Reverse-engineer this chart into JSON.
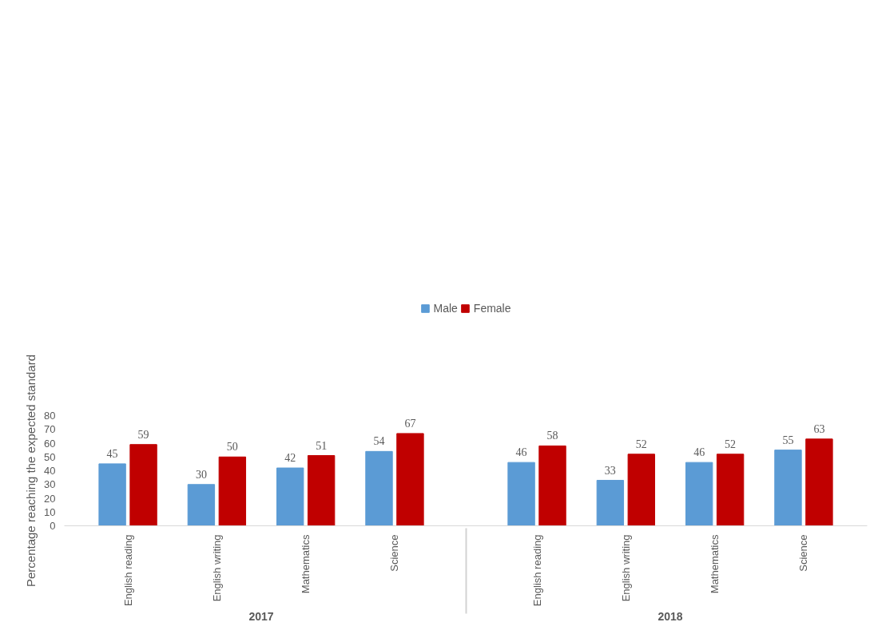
{
  "chart_data": {
    "type": "bar",
    "ylabel": "Percentage reaching the expected standard",
    "categories": [
      "English reading",
      "English writing",
      "Mathematics",
      "Science",
      "English reading",
      "English writing",
      "Mathematics",
      "Science"
    ],
    "annotations": [
      "2017",
      "2018"
    ],
    "series": [
      {
        "name": "Male",
        "color": "#5b9bd5",
        "values": [
          45,
          30,
          42,
          54,
          46,
          33,
          46,
          55
        ]
      },
      {
        "name": "Female",
        "color": "#c00000",
        "values": [
          59,
          50,
          51,
          67,
          58,
          52,
          52,
          63
        ]
      }
    ],
    "ylim": [
      0,
      80
    ],
    "yticks": [
      0,
      10,
      20,
      30,
      40,
      50,
      60,
      70,
      80
    ],
    "grid": false,
    "legend": "top",
    "data_labels": true
  }
}
